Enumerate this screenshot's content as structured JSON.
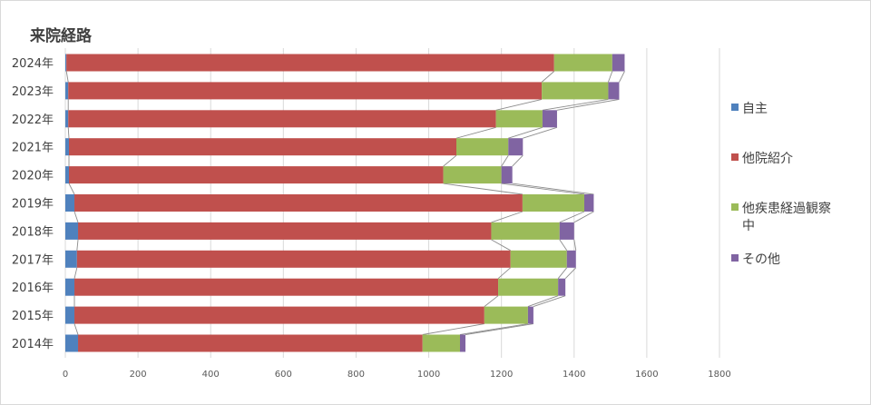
{
  "chart_data": {
    "type": "bar",
    "orientation": "horizontal",
    "stacked": true,
    "series_lines": true,
    "title": "来院経路",
    "categories": [
      "2024年",
      "2023年",
      "2022年",
      "2021年",
      "2020年",
      "2019年",
      "2018年",
      "2017年",
      "2016年",
      "2015年",
      "2014年"
    ],
    "series": [
      {
        "name": "自主",
        "color": "#4f81bd",
        "values": [
          3,
          8,
          8,
          10,
          10,
          25,
          35,
          32,
          25,
          25,
          35
        ]
      },
      {
        "name": "他院紹介",
        "color": "#c0504d",
        "values": [
          1342,
          1303,
          1177,
          1066,
          1030,
          1233,
          1137,
          1193,
          1166,
          1128,
          948
        ]
      },
      {
        "name": "他疾患経過観察中",
        "color": "#9bbb59",
        "values": [
          160,
          183,
          128,
          143,
          160,
          170,
          188,
          155,
          165,
          120,
          103
        ]
      },
      {
        "name": "その他",
        "color": "#8064a2",
        "values": [
          34,
          30,
          40,
          40,
          30,
          26,
          40,
          25,
          20,
          15,
          15
        ]
      }
    ],
    "xlim": [
      0,
      1800
    ],
    "xticks": [
      0,
      200,
      400,
      600,
      800,
      1000,
      1200,
      1400,
      1600,
      1800
    ],
    "grid": "vertical",
    "legend_position": "right",
    "xlabel": "",
    "ylabel": ""
  }
}
